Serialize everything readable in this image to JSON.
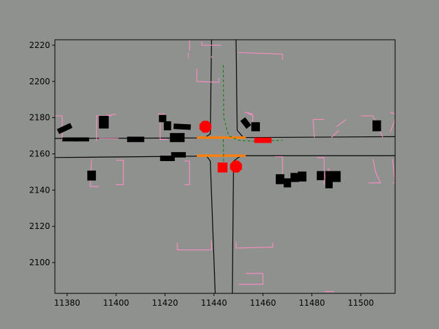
{
  "chart_data": {
    "type": "scatter",
    "title": "",
    "xlabel": "",
    "ylabel": "",
    "xlim": [
      11375,
      11514
    ],
    "ylim": [
      2083,
      2223
    ],
    "grid": false,
    "legend": "none",
    "x_ticks": [
      11380,
      11400,
      11420,
      11440,
      11460,
      11480,
      11500
    ],
    "y_ticks": [
      2100,
      2120,
      2140,
      2160,
      2180,
      2200,
      2220
    ],
    "colors": {
      "figure_background": "#8f918e",
      "plot_background": "#8f918e",
      "road_edge": "#000000",
      "crosswalk": "#ff8cc6",
      "vehicle": "#000000",
      "stop_line": "#ff7f0e",
      "ego_vehicle": "#ff0000",
      "route": "#007f00"
    },
    "road_edges": [
      {
        "points": [
          [
            11375,
            2168.5
          ],
          [
            11436,
            2168.8
          ],
          [
            11438.5,
            2171
          ],
          [
            11439,
            2223
          ]
        ]
      },
      {
        "points": [
          [
            11449,
            2223
          ],
          [
            11449.5,
            2173
          ],
          [
            11452,
            2169
          ],
          [
            11514,
            2169.5
          ]
        ]
      },
      {
        "points": [
          [
            11375,
            2158
          ],
          [
            11437,
            2158.8
          ],
          [
            11438.5,
            2156
          ],
          [
            11440.5,
            2083
          ]
        ]
      },
      {
        "points": [
          [
            11447.5,
            2083
          ],
          [
            11448,
            2156
          ],
          [
            11451,
            2159
          ],
          [
            11514,
            2159
          ]
        ]
      }
    ],
    "crosswalks": [
      {
        "points": [
          [
            11435,
            2222
          ],
          [
            11435,
            2220
          ],
          [
            11443,
            2220
          ]
        ]
      },
      {
        "points": [
          [
            11430,
            2223
          ],
          [
            11430,
            2217
          ]
        ]
      },
      {
        "points": [
          [
            11429.5,
            2216
          ],
          [
            11429.5,
            2213
          ]
        ]
      },
      {
        "points": [
          [
            11439,
            2213
          ],
          [
            11439,
            2214
          ]
        ]
      },
      {
        "points": [
          [
            11450,
            2216
          ],
          [
            11468,
            2215
          ],
          [
            11468,
            2212
          ]
        ]
      },
      {
        "points": [
          [
            11433,
            2207
          ],
          [
            11433,
            2200
          ],
          [
            11442,
            2199.5
          ],
          [
            11442,
            2202
          ]
        ]
      },
      {
        "points": [
          [
            11375,
            2181
          ],
          [
            11378,
            2181
          ],
          [
            11378,
            2167
          ]
        ]
      },
      {
        "points": [
          [
            11392,
            2167
          ],
          [
            11392,
            2181
          ],
          [
            11398,
            2181
          ]
        ]
      },
      {
        "points": [
          [
            11400,
            2182
          ],
          [
            11394,
            2180.5
          ]
        ]
      },
      {
        "points": [
          [
            11393,
            2168.5
          ],
          [
            11401,
            2168.5
          ]
        ]
      },
      {
        "points": [
          [
            11418,
            2180
          ],
          [
            11418,
            2168
          ],
          [
            11421,
            2168
          ]
        ]
      },
      {
        "points": [
          [
            11417,
            2182
          ],
          [
            11420,
            2182
          ]
        ]
      },
      {
        "points": [
          [
            11390,
            2157
          ],
          [
            11389.5,
            2142
          ],
          [
            11393,
            2142
          ]
        ]
      },
      {
        "points": [
          [
            11400,
            2156.5
          ],
          [
            11403,
            2156.5
          ],
          [
            11403,
            2143
          ],
          [
            11400,
            2143
          ]
        ]
      },
      {
        "points": [
          [
            11428,
            2156
          ],
          [
            11430,
            2156
          ],
          [
            11430,
            2143
          ],
          [
            11428,
            2143
          ]
        ]
      },
      {
        "points": [
          [
            11453,
            2183
          ],
          [
            11456,
            2181
          ],
          [
            11455.5,
            2175
          ]
        ]
      },
      {
        "points": [
          [
            11456,
            2182
          ],
          [
            11452.5,
            2183
          ]
        ]
      },
      {
        "points": [
          [
            11481,
            2169
          ],
          [
            11480.5,
            2179
          ],
          [
            11485,
            2179
          ]
        ]
      },
      {
        "points": [
          [
            11490,
            2175
          ],
          [
            11494,
            2179
          ]
        ]
      },
      {
        "points": [
          [
            11488,
            2169
          ],
          [
            11491,
            2173
          ]
        ]
      },
      {
        "points": [
          [
            11500,
            2181
          ],
          [
            11505,
            2181
          ],
          [
            11509,
            2169
          ]
        ]
      },
      {
        "points": [
          [
            11512,
            2183
          ],
          [
            11514,
            2182
          ]
        ]
      },
      {
        "points": [
          [
            11512,
            2172
          ],
          [
            11514,
            2179
          ]
        ]
      },
      {
        "points": [
          [
            11465,
            2158.5
          ],
          [
            11468,
            2158.5
          ],
          [
            11468,
            2143
          ]
        ]
      },
      {
        "points": [
          [
            11482,
            2158
          ],
          [
            11485,
            2158
          ],
          [
            11485,
            2143
          ]
        ]
      },
      {
        "points": [
          [
            11486.5,
            2152
          ],
          [
            11487.5,
            2150
          ]
        ]
      },
      {
        "points": [
          [
            11485,
            2150
          ],
          [
            11486,
            2143
          ]
        ]
      },
      {
        "points": [
          [
            11505,
            2157
          ],
          [
            11506,
            2150
          ],
          [
            11508,
            2144
          ],
          [
            11503,
            2144
          ]
        ]
      },
      {
        "points": [
          [
            11513,
            2157
          ],
          [
            11514,
            2144
          ]
        ]
      },
      {
        "points": [
          [
            11513,
            2144
          ],
          [
            11514,
            2144
          ]
        ]
      },
      {
        "points": [
          [
            11425,
            2111
          ],
          [
            11425,
            2107
          ],
          [
            11439,
            2107
          ],
          [
            11439,
            2112
          ]
        ]
      },
      {
        "points": [
          [
            11449,
            2111.5
          ],
          [
            11449,
            2108
          ],
          [
            11464,
            2108.5
          ],
          [
            11464,
            2111
          ]
        ]
      },
      {
        "points": [
          [
            11450,
            2088
          ],
          [
            11460,
            2088
          ],
          [
            11460,
            2094
          ],
          [
            11453,
            2094
          ]
        ]
      },
      {
        "points": [
          [
            11485,
            2084
          ],
          [
            11489,
            2084
          ]
        ]
      }
    ],
    "vehicles": [
      {
        "x": 11379,
        "y": 2174,
        "w": 6,
        "h": 3,
        "angle": 25
      },
      {
        "x": 11381,
        "y": 2168,
        "w": 6,
        "h": 2.2,
        "angle": 0
      },
      {
        "x": 11386,
        "y": 2168,
        "w": 6,
        "h": 2.2,
        "angle": 0
      },
      {
        "x": 11395,
        "y": 2177.5,
        "w": 4,
        "h": 7,
        "angle": 0
      },
      {
        "x": 11408,
        "y": 2168,
        "w": 7,
        "h": 3,
        "angle": 0
      },
      {
        "x": 11419,
        "y": 2179.5,
        "w": 3,
        "h": 4,
        "angle": 0
      },
      {
        "x": 11421,
        "y": 2175.5,
        "w": 3,
        "h": 5,
        "angle": 0
      },
      {
        "x": 11427,
        "y": 2175,
        "w": 7,
        "h": 3,
        "angle": -3
      },
      {
        "x": 11425,
        "y": 2169,
        "w": 6,
        "h": 5,
        "angle": 0
      },
      {
        "x": 11421,
        "y": 2157.5,
        "w": 6,
        "h": 3,
        "angle": 0
      },
      {
        "x": 11425.5,
        "y": 2159.5,
        "w": 6,
        "h": 3,
        "angle": 0
      },
      {
        "x": 11390,
        "y": 2148,
        "w": 3.5,
        "h": 5.5,
        "angle": 0
      },
      {
        "x": 11453,
        "y": 2177,
        "w": 2.5,
        "h": 5.5,
        "angle": 38
      },
      {
        "x": 11457,
        "y": 2175,
        "w": 3.5,
        "h": 5,
        "angle": 0
      },
      {
        "x": 11467,
        "y": 2146,
        "w": 3.5,
        "h": 5.5,
        "angle": 0
      },
      {
        "x": 11470,
        "y": 2144,
        "w": 3,
        "h": 5,
        "angle": 0
      },
      {
        "x": 11473,
        "y": 2147,
        "w": 3.5,
        "h": 5,
        "angle": 0
      },
      {
        "x": 11476,
        "y": 2147.5,
        "w": 3.5,
        "h": 5.5,
        "angle": 0
      },
      {
        "x": 11483.5,
        "y": 2148,
        "w": 3,
        "h": 5,
        "angle": 0
      },
      {
        "x": 11487,
        "y": 2143.5,
        "w": 3,
        "h": 5,
        "angle": 0
      },
      {
        "x": 11487,
        "y": 2148,
        "w": 3,
        "h": 5,
        "angle": 0
      },
      {
        "x": 11490,
        "y": 2147.5,
        "w": 3.5,
        "h": 6,
        "angle": 0
      },
      {
        "x": 11506.5,
        "y": 2175.5,
        "w": 3.5,
        "h": 6,
        "angle": 0
      }
    ],
    "stop_lines": [
      {
        "points": [
          [
            11433,
            2169
          ],
          [
            11453,
            2169
          ]
        ]
      },
      {
        "points": [
          [
            11433,
            2159
          ],
          [
            11453,
            2159
          ]
        ]
      }
    ],
    "ego_vehicles": [
      {
        "shape": "octagon",
        "x": 11436.5,
        "y": 2175,
        "r": 2.5
      },
      {
        "shape": "rect",
        "x": 11443.5,
        "y": 2152.5,
        "w": 4,
        "h": 5.5,
        "angle": 0
      },
      {
        "shape": "octagon",
        "x": 11449,
        "y": 2153,
        "r": 2.5
      },
      {
        "shape": "rect",
        "x": 11460,
        "y": 2167.5,
        "w": 7,
        "h": 3,
        "angle": 0
      }
    ],
    "route": {
      "points": [
        [
          11443.8,
          2209
        ],
        [
          11444,
          2180
        ],
        [
          11446,
          2170
        ],
        [
          11450,
          2167.5
        ],
        [
          11456,
          2167
        ],
        [
          11468,
          2167.5
        ]
      ]
    },
    "route2": {
      "points": [
        [
          11443.8,
          2168
        ],
        [
          11444,
          2152
        ]
      ]
    }
  }
}
